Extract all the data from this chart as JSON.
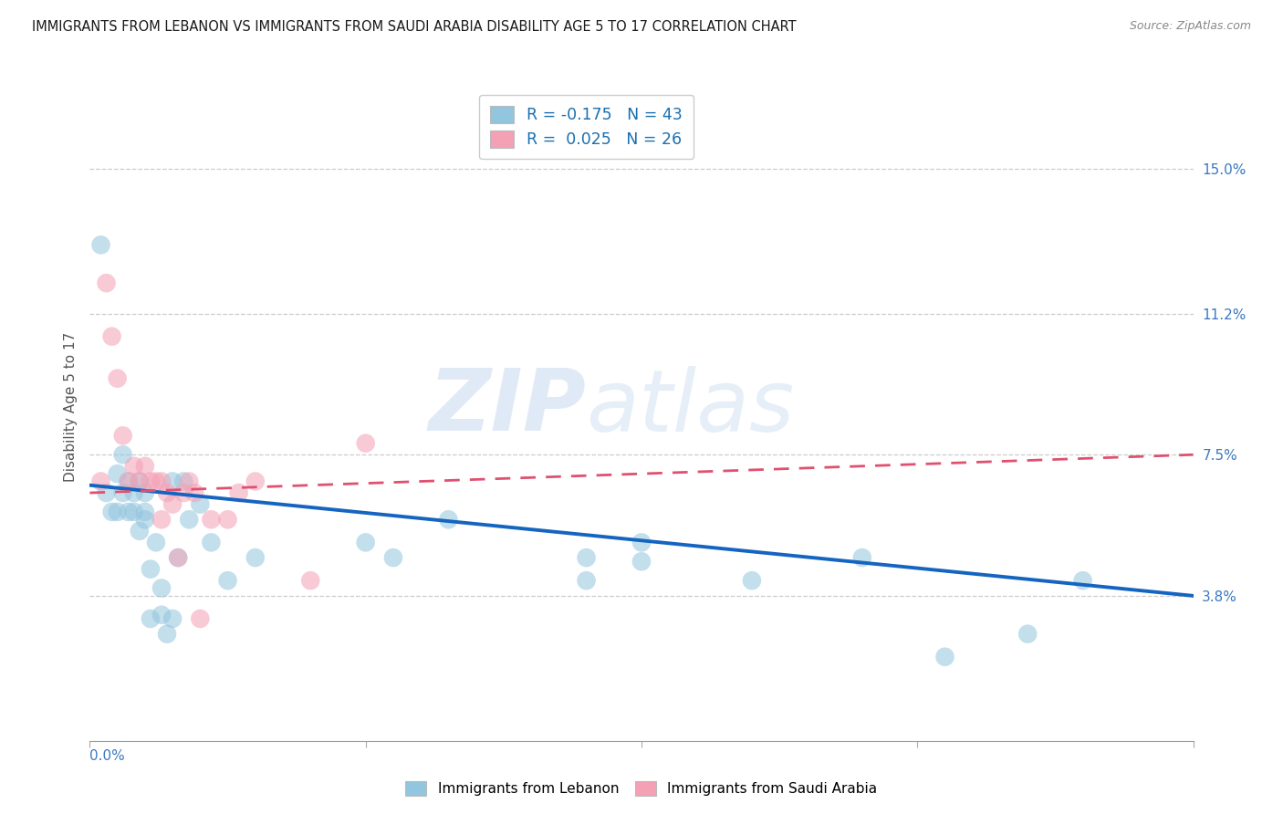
{
  "title": "IMMIGRANTS FROM LEBANON VS IMMIGRANTS FROM SAUDI ARABIA DISABILITY AGE 5 TO 17 CORRELATION CHART",
  "source": "Source: ZipAtlas.com",
  "ylabel": "Disability Age 5 to 17",
  "right_yticks": [
    0.038,
    0.075,
    0.112,
    0.15
  ],
  "right_yticklabels": [
    "3.8%",
    "7.5%",
    "11.2%",
    "15.0%"
  ],
  "watermark_zip": "ZIP",
  "watermark_atlas": "atlas",
  "legend_lebanon": "R = -0.175   N = 43",
  "legend_saudi": "R =  0.025   N = 26",
  "color_lebanon": "#92c5de",
  "color_saudi": "#f4a0b5",
  "trend_lebanon_color": "#1565c0",
  "trend_saudi_color": "#e05070",
  "xlim": [
    0.0,
    0.2
  ],
  "ylim": [
    0.0,
    0.175
  ],
  "lebanon_x": [
    0.002,
    0.003,
    0.004,
    0.005,
    0.005,
    0.006,
    0.006,
    0.007,
    0.007,
    0.008,
    0.008,
    0.009,
    0.009,
    0.01,
    0.01,
    0.01,
    0.011,
    0.011,
    0.012,
    0.013,
    0.013,
    0.014,
    0.015,
    0.015,
    0.016,
    0.017,
    0.018,
    0.02,
    0.022,
    0.025,
    0.03,
    0.05,
    0.055,
    0.065,
    0.09,
    0.09,
    0.1,
    0.1,
    0.12,
    0.14,
    0.155,
    0.17,
    0.18
  ],
  "lebanon_y": [
    0.13,
    0.065,
    0.06,
    0.07,
    0.06,
    0.075,
    0.065,
    0.068,
    0.06,
    0.065,
    0.06,
    0.068,
    0.055,
    0.065,
    0.06,
    0.058,
    0.045,
    0.032,
    0.052,
    0.04,
    0.033,
    0.028,
    0.068,
    0.032,
    0.048,
    0.068,
    0.058,
    0.062,
    0.052,
    0.042,
    0.048,
    0.052,
    0.048,
    0.058,
    0.048,
    0.042,
    0.052,
    0.047,
    0.042,
    0.048,
    0.022,
    0.028,
    0.042
  ],
  "saudi_x": [
    0.002,
    0.003,
    0.004,
    0.005,
    0.006,
    0.007,
    0.008,
    0.009,
    0.01,
    0.011,
    0.012,
    0.013,
    0.013,
    0.014,
    0.015,
    0.016,
    0.017,
    0.018,
    0.019,
    0.02,
    0.022,
    0.025,
    0.027,
    0.03,
    0.04,
    0.05
  ],
  "saudi_y": [
    0.068,
    0.12,
    0.106,
    0.095,
    0.08,
    0.068,
    0.072,
    0.068,
    0.072,
    0.068,
    0.068,
    0.058,
    0.068,
    0.065,
    0.062,
    0.048,
    0.065,
    0.068,
    0.065,
    0.032,
    0.058,
    0.058,
    0.065,
    0.068,
    0.042,
    0.078
  ],
  "trend_lb_x0": 0.0,
  "trend_lb_x1": 0.2,
  "trend_lb_y0": 0.067,
  "trend_lb_y1": 0.038,
  "trend_sa_x0": 0.0,
  "trend_sa_x1": 0.2,
  "trend_sa_y0": 0.065,
  "trend_sa_y1": 0.075
}
